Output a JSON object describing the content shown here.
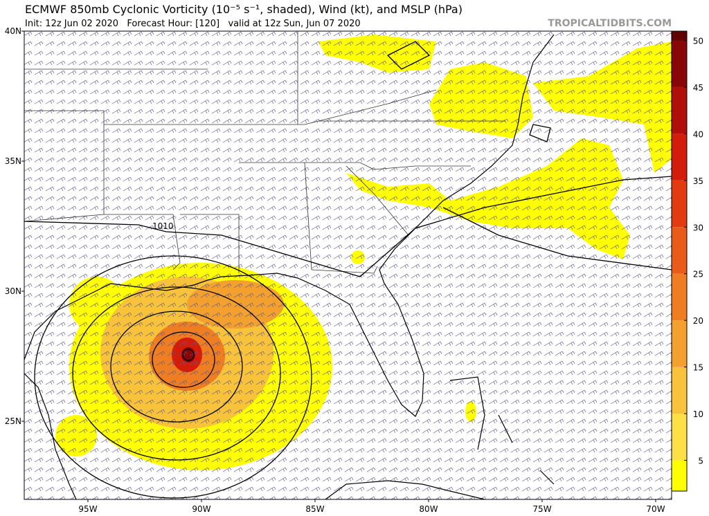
{
  "header": {
    "title": "ECMWF 850mb Cyclonic Vorticity (10⁻⁵ s⁻¹, shaded), Wind (kt), and MSLP (hPa)",
    "subtitle": "Init: 12z Jun 02 2020   Forecast Hour: [120]   valid at 12z Sun, Jun 07 2020",
    "credit": "TROPICALTIDBITS.COM"
  },
  "map": {
    "lat_labels": [
      "40N",
      "35N",
      "30N",
      "25N"
    ],
    "lon_labels": [
      "95W",
      "90W",
      "85W",
      "80W",
      "75W",
      "70W"
    ],
    "contour_label": "1010"
  },
  "colorbar": {
    "range": [
      1.7,
      51
    ],
    "ticks": [
      5,
      10,
      15,
      20,
      25,
      30,
      35,
      40,
      45,
      50
    ],
    "colors": [
      "#ffff00",
      "#fde047",
      "#f8c23a",
      "#f4a02e",
      "#ef7d22",
      "#ea5a18",
      "#e43a10",
      "#d41c0a",
      "#b00e08",
      "#880606",
      "#600303"
    ]
  }
}
